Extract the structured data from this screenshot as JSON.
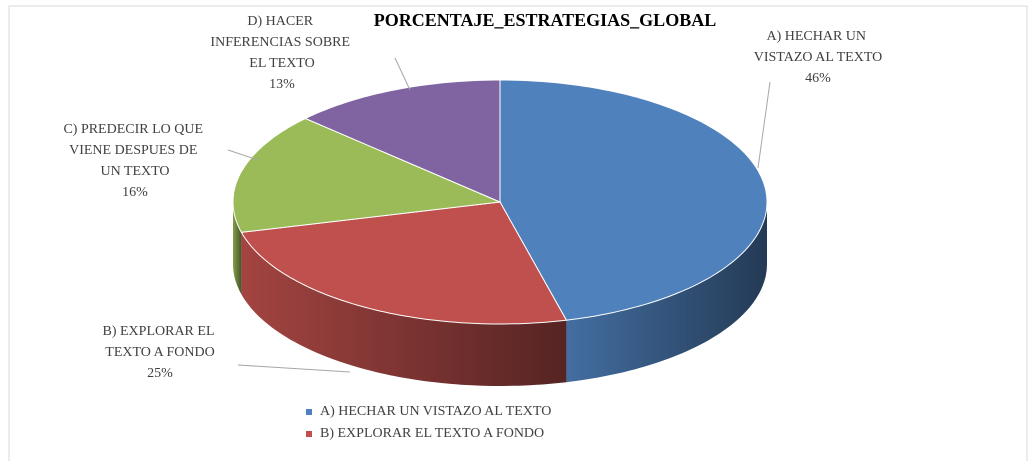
{
  "chart_data": {
    "type": "pie",
    "title": "PORCENTAJE_ESTRATEGIAS_GLOBAL",
    "categories": [
      "A) HECHAR UN VISTAZO AL TEXTO",
      "B) EXPLORAR EL TEXTO A FONDO",
      "C) PREDECIR LO QUE VIENE DESPUES DE UN TEXTO",
      "D) HACER INFERENCIAS SOBRE EL TEXTO"
    ],
    "values": [
      46,
      25,
      16,
      13
    ],
    "value_labels": [
      "46%",
      "25%",
      "16%",
      "13%"
    ],
    "colors": [
      "#4f81bd",
      "#c0504d",
      "#9bbb59",
      "#8064a2"
    ],
    "legend": "bottom"
  }
}
